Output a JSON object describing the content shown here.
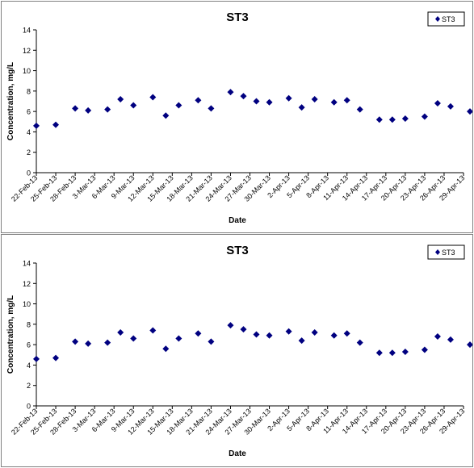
{
  "chart_data": [
    {
      "type": "scatter",
      "title": "ST3",
      "xlabel": "Date",
      "ylabel": "Concentration, mg/L",
      "ylim": [
        0,
        14
      ],
      "y_ticks": [
        0,
        2,
        4,
        6,
        8,
        10,
        12,
        14
      ],
      "x_tick_labels": [
        "22-Feb-13",
        "25-Feb-13",
        "28-Feb-13",
        "3-Mar-13",
        "6-Mar-13",
        "9-Mar-13",
        "12-Mar-13",
        "15-Mar-13",
        "18-Mar-13",
        "21-Mar-13",
        "24-Mar-13",
        "27-Mar-13",
        "30-Mar-13",
        "2-Apr-13",
        "5-Apr-13",
        "8-Apr-13",
        "11-Apr-13",
        "14-Apr-13",
        "17-Apr-13",
        "20-Apr-13",
        "23-Apr-13",
        "26-Apr-13",
        "29-Apr-13"
      ],
      "xlim": [
        "22-Feb-13",
        "29-Apr-13"
      ],
      "grid": false,
      "legend_position": "top-right",
      "marker_color": "#000080",
      "series": [
        {
          "name": "ST3",
          "x": [
            "22-Feb-13",
            "25-Feb-13",
            "28-Feb-13",
            "2-Mar-13",
            "5-Mar-13",
            "7-Mar-13",
            "9-Mar-13",
            "12-Mar-13",
            "14-Mar-13",
            "16-Mar-13",
            "19-Mar-13",
            "21-Mar-13",
            "24-Mar-13",
            "26-Mar-13",
            "28-Mar-13",
            "30-Mar-13",
            "2-Apr-13",
            "4-Apr-13",
            "6-Apr-13",
            "9-Apr-13",
            "11-Apr-13",
            "13-Apr-13",
            "16-Apr-13",
            "18-Apr-13",
            "20-Apr-13",
            "23-Apr-13",
            "25-Apr-13",
            "27-Apr-13",
            "30-Apr-13"
          ],
          "y": [
            4.6,
            4.7,
            6.3,
            6.1,
            6.2,
            7.2,
            6.6,
            7.4,
            5.6,
            6.6,
            7.1,
            6.3,
            7.9,
            7.5,
            7.0,
            6.9,
            7.3,
            6.4,
            7.2,
            6.9,
            7.1,
            6.2,
            5.2,
            5.2,
            5.3,
            5.5,
            6.8,
            6.5,
            6.0
          ]
        }
      ]
    },
    {
      "type": "scatter",
      "title": "ST3",
      "xlabel": "Date",
      "ylabel": "Concentration, mg/L",
      "ylim": [
        0,
        14
      ],
      "y_ticks": [
        0,
        2,
        4,
        6,
        8,
        10,
        12,
        14
      ],
      "x_tick_labels": [
        "22-Feb-13",
        "25-Feb-13",
        "28-Feb-13",
        "3-Mar-13",
        "6-Mar-13",
        "9-Mar-13",
        "12-Mar-13",
        "15-Mar-13",
        "18-Mar-13",
        "21-Mar-13",
        "24-Mar-13",
        "27-Mar-13",
        "30-Mar-13",
        "2-Apr-13",
        "5-Apr-13",
        "8-Apr-13",
        "11-Apr-13",
        "14-Apr-13",
        "17-Apr-13",
        "20-Apr-13",
        "23-Apr-13",
        "26-Apr-13",
        "29-Apr-13"
      ],
      "xlim": [
        "22-Feb-13",
        "29-Apr-13"
      ],
      "grid": false,
      "legend_position": "top-right",
      "marker_color": "#000080",
      "series": [
        {
          "name": "ST3",
          "x": [
            "22-Feb-13",
            "25-Feb-13",
            "28-Feb-13",
            "2-Mar-13",
            "5-Mar-13",
            "7-Mar-13",
            "9-Mar-13",
            "12-Mar-13",
            "14-Mar-13",
            "16-Mar-13",
            "19-Mar-13",
            "21-Mar-13",
            "24-Mar-13",
            "26-Mar-13",
            "28-Mar-13",
            "30-Mar-13",
            "2-Apr-13",
            "4-Apr-13",
            "6-Apr-13",
            "9-Apr-13",
            "11-Apr-13",
            "13-Apr-13",
            "16-Apr-13",
            "18-Apr-13",
            "20-Apr-13",
            "23-Apr-13",
            "25-Apr-13",
            "27-Apr-13",
            "30-Apr-13"
          ],
          "y": [
            4.6,
            4.7,
            6.3,
            6.1,
            6.2,
            7.2,
            6.6,
            7.4,
            5.6,
            6.6,
            7.1,
            6.3,
            7.9,
            7.5,
            7.0,
            6.9,
            7.3,
            6.4,
            7.2,
            6.9,
            7.1,
            6.2,
            5.2,
            5.2,
            5.3,
            5.5,
            6.8,
            6.5,
            6.0
          ]
        }
      ]
    }
  ]
}
